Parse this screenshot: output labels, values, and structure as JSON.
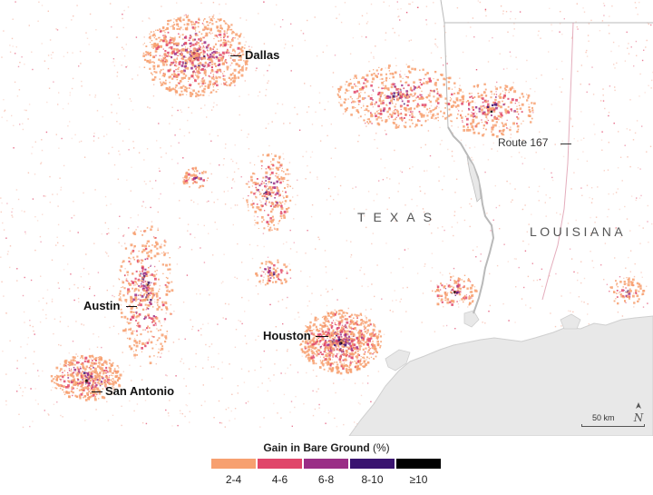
{
  "cities": [
    {
      "name": "Dallas",
      "key": "dallas"
    },
    {
      "name": "Austin",
      "key": "austin"
    },
    {
      "name": "Houston",
      "key": "houston"
    },
    {
      "name": "San Antonio",
      "key": "san-antonio"
    }
  ],
  "states": {
    "texas": "TEXAS",
    "louisiana": "LOUISIANA"
  },
  "route_label": "Route 167",
  "scale_label": "50 km",
  "legend": {
    "title_bold": "Gain in Bare Ground",
    "title_unit": "(%)",
    "classes": [
      {
        "label": "2-4",
        "color": "#f7a070"
      },
      {
        "label": "4-6",
        "color": "#e0466a"
      },
      {
        "label": "6-8",
        "color": "#9a2e86"
      },
      {
        "label": "8-10",
        "color": "#3a1470"
      },
      {
        "label": "≥10",
        "color": "#000000"
      }
    ]
  },
  "colors": {
    "water": "#e8e8e8",
    "land": "#ffffff",
    "background_speckle": "#f6b9a8"
  }
}
